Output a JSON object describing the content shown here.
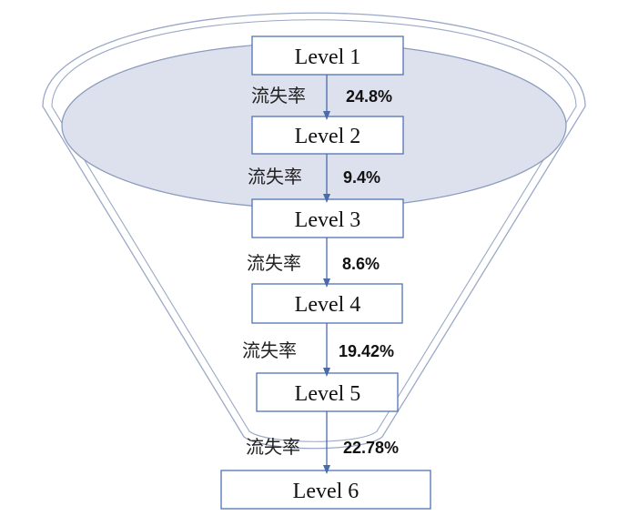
{
  "levels": [
    {
      "label": "Level 1"
    },
    {
      "label": "Level 2"
    },
    {
      "label": "Level 3"
    },
    {
      "label": "Level 4"
    },
    {
      "label": "Level 5"
    },
    {
      "label": "Level 6"
    }
  ],
  "transitions": [
    {
      "label": "流失率",
      "value": "24.8%"
    },
    {
      "label": "流失率",
      "value": "9.4%"
    },
    {
      "label": "流失率",
      "value": "8.6%"
    },
    {
      "label": "流失率",
      "value": "19.42%"
    },
    {
      "label": "流失率",
      "value": "22.78%"
    }
  ],
  "colors": {
    "funnel_outline": "#9aa9c6",
    "funnel_fill": "#dde1ee",
    "box_border": "#4f73b4",
    "arrow": "#4a6aa8"
  }
}
